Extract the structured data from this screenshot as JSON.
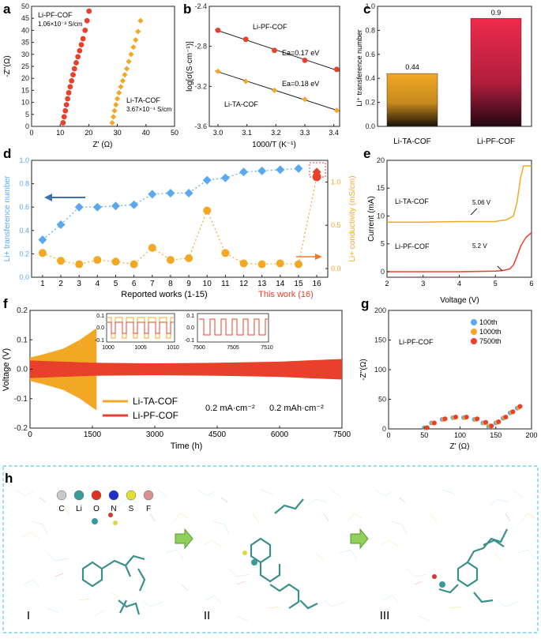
{
  "colors": {
    "red": "#e8402a",
    "orange": "#f2a825",
    "blue": "#5aa9ee",
    "dblue": "#3f6fb0",
    "gray": "#555555"
  },
  "panels": {
    "a": {
      "label": "a",
      "xlabel": "Z' (Ω)",
      "ylabel": "-Z''(Ω)",
      "xlim": [
        0,
        50
      ],
      "ylim": [
        0,
        50
      ],
      "xticks": [
        "0",
        "10",
        "20",
        "30",
        "40",
        "50"
      ],
      "yticks": [
        "0",
        "5",
        "10",
        "15",
        "20",
        "25",
        "30",
        "35",
        "40",
        "45",
        "50"
      ],
      "label_pf": "Li-PF-COF",
      "cond_pf": "1.06×10⁻³ S/cm",
      "label_ta": "Li-TA-COF",
      "cond_ta": "3.67×10⁻⁴ S/cm"
    },
    "b": {
      "label": "b",
      "xlabel": "1000/T (K⁻¹)",
      "ylabel": "log[σ(S·cm⁻¹)]",
      "xticks": [
        "3.0",
        "3.1",
        "3.2",
        "3.3",
        "3.4"
      ],
      "yticks": [
        "-2.4",
        "-2.8",
        "-3.2",
        "-3.6"
      ],
      "label_pf": "Li-PF-COF",
      "ea_pf": "Ea=0.17 eV",
      "label_ta": "Li-TA-COF",
      "ea_ta": "Ea=0.18 eV"
    },
    "c": {
      "label": "c",
      "ylabel": "Li⁺ transference number",
      "yticks": [
        "0.0",
        "0.2",
        "0.4",
        "0.6",
        "0.8",
        "1.0"
      ],
      "val_ta": "0.44",
      "val_pf": "0.9",
      "cat_ta": "Li-TA-COF",
      "cat_pf": "Li-PF-COF"
    },
    "d": {
      "label": "d",
      "xlabel": "Reported works (1-15)",
      "this_work": "This work (16)",
      "ylabel_left": "Li+ transference number",
      "ylabel_right": "Li+ conductivity (mS/cm)",
      "xticks": [
        "1",
        "2",
        "3",
        "4",
        "5",
        "6",
        "7",
        "8",
        "9",
        "10",
        "11",
        "12",
        "13",
        "14",
        "15",
        "16"
      ],
      "ylticks": [
        "0.0",
        "0.2",
        "0.4",
        "0.6",
        "0.8",
        "1.0"
      ],
      "yrticks": [
        "0.0",
        "0.5",
        "1.0"
      ]
    },
    "e": {
      "label": "e",
      "xlabel": "Voltage (V)",
      "ylabel": "Current (mA)",
      "xticks": [
        "2",
        "3",
        "4",
        "5",
        "6"
      ],
      "yticks": [
        "0",
        "5",
        "10",
        "15",
        "20"
      ],
      "label_ta": "Li-TA-COF",
      "v_ta": "5.06 V",
      "label_pf": "Li-PF-COF",
      "v_pf": "5.2 V"
    },
    "f": {
      "label": "f",
      "xlabel": "Time (h)",
      "ylabel": "Voltage (V)",
      "xticks": [
        "0",
        "1500",
        "3000",
        "4500",
        "6000",
        "7500"
      ],
      "yticks": [
        "-0.2",
        "-0.1",
        "0.0",
        "0.1",
        "0.2"
      ],
      "inset1_x": [
        "1000",
        "1005",
        "1010"
      ],
      "inset2_x": [
        "7500",
        "7505",
        "7510"
      ],
      "inset_y": [
        "0.1",
        "0.0",
        "-0.1"
      ],
      "legend_ta": "Li-TA-COF",
      "legend_pf": "Li-PF-COF",
      "cond1": "0.2 mA·cm⁻²",
      "cond2": "0.2 mAh·cm⁻²"
    },
    "g": {
      "label": "g",
      "xlabel": "Z' (Ω)",
      "ylabel": "-Z''(Ω)",
      "title": "Li-PF-COF",
      "xticks": [
        "0",
        "50",
        "100",
        "150",
        "200"
      ],
      "yticks": [
        "0",
        "50",
        "100",
        "150",
        "200"
      ],
      "legend": [
        "100th",
        "1000th",
        "7500th"
      ]
    },
    "h": {
      "label": "h",
      "elements": [
        "C",
        "Li",
        "O",
        "N",
        "S",
        "F"
      ],
      "stages": [
        "I",
        "II",
        "III"
      ]
    }
  },
  "chart_data": [
    {
      "type": "scatter",
      "panel": "a",
      "title": "",
      "xlabel": "Z' (Ω)",
      "ylabel": "-Z''(Ω)",
      "xlim": [
        0,
        50
      ],
      "ylim": [
        0,
        50
      ],
      "series": [
        {
          "name": "Li-PF-COF",
          "x": [
            11.0,
            11.4,
            11.8,
            12.2,
            12.6,
            13.0,
            13.5,
            14.0,
            14.5,
            15.0,
            15.6,
            16.2,
            16.8,
            17.4,
            18.0,
            18.7,
            19.4,
            20.1
          ],
          "y": [
            1.5,
            4,
            6.5,
            9,
            11.5,
            14,
            16.5,
            19,
            21.5,
            24,
            26.5,
            29,
            31.5,
            34,
            36.5,
            40,
            44,
            48
          ]
        },
        {
          "name": "Li-TA-COF",
          "x": [
            28.2,
            28.6,
            29.0,
            29.5,
            30.0,
            30.6,
            31.2,
            31.9,
            32.6,
            33.3,
            34.0,
            34.8,
            35.6,
            36.4,
            37.2,
            38.1
          ],
          "y": [
            1.5,
            4,
            6.5,
            9,
            11.5,
            14,
            16.5,
            19,
            21.5,
            24,
            27,
            30,
            33,
            36,
            39.5,
            44
          ]
        }
      ]
    },
    {
      "type": "scatter",
      "panel": "b",
      "title": "",
      "xlabel": "1000/T (K⁻¹)",
      "ylabel": "log[σ(S·cm⁻¹)]",
      "xlim": [
        2.97,
        3.42
      ],
      "ylim": [
        -3.6,
        -2.4
      ],
      "series": [
        {
          "name": "Li-PF-COF",
          "x": [
            3.0,
            3.096,
            3.195,
            3.3,
            3.41
          ],
          "y": [
            -2.64,
            -2.73,
            -2.84,
            -2.94,
            -3.03
          ]
        },
        {
          "name": "Li-TA-COF",
          "x": [
            3.0,
            3.096,
            3.195,
            3.3,
            3.41
          ],
          "y": [
            -3.05,
            -3.15,
            -3.24,
            -3.33,
            -3.44
          ]
        }
      ]
    },
    {
      "type": "bar",
      "panel": "c",
      "categories": [
        "Li-TA-COF",
        "Li-PF-COF"
      ],
      "values": [
        0.44,
        0.9
      ],
      "ylabel": "Li⁺ transference number",
      "ylim": [
        0,
        1.0
      ]
    },
    {
      "type": "line",
      "panel": "d",
      "x": [
        1,
        2,
        3,
        4,
        5,
        6,
        7,
        8,
        9,
        10,
        11,
        12,
        13,
        14,
        15,
        16
      ],
      "xlabel": "Reported works (1-15)",
      "series": [
        {
          "name": "Li+ transference number",
          "axis": "left",
          "values": [
            0.32,
            0.45,
            0.6,
            0.6,
            0.61,
            0.62,
            0.71,
            0.72,
            0.72,
            0.83,
            0.85,
            0.9,
            0.91,
            0.92,
            0.93,
            0.9
          ]
        },
        {
          "name": "Li+ conductivity (mS/cm)",
          "axis": "right",
          "values": [
            0.18,
            0.09,
            0.05,
            0.1,
            0.08,
            0.05,
            0.24,
            0.1,
            0.12,
            0.67,
            0.18,
            0.06,
            0.05,
            0.06,
            0.05,
            1.06
          ]
        }
      ],
      "ylim_left": [
        0,
        1.0
      ],
      "ylim_right": [
        -0.1,
        1.25
      ]
    },
    {
      "type": "line",
      "panel": "e",
      "xlabel": "Voltage (V)",
      "ylabel": "Current (mA)",
      "xlim": [
        2,
        6
      ],
      "ylim": [
        -1,
        20
      ],
      "series": [
        {
          "name": "Li-TA-COF",
          "x": [
            2,
            3,
            4,
            5,
            5.06,
            5.3,
            5.5,
            5.6,
            5.7,
            5.78,
            6
          ],
          "y": [
            8.9,
            8.9,
            9.0,
            9.0,
            9.1,
            9.3,
            10,
            12.5,
            17,
            19,
            19
          ]
        },
        {
          "name": "Li-PF-COF",
          "x": [
            2,
            3,
            4,
            5,
            5.2,
            5.4,
            5.5,
            5.6,
            5.7,
            5.85,
            6
          ],
          "y": [
            0,
            0,
            0,
            0.1,
            0.2,
            0.5,
            1.2,
            2.8,
            4.6,
            6.2,
            7
          ]
        }
      ]
    },
    {
      "type": "area",
      "panel": "f",
      "xlabel": "Time (h)",
      "ylabel": "Voltage (V)",
      "xlim": [
        0,
        7500
      ],
      "ylim": [
        -0.2,
        0.2
      ],
      "series": [
        {
          "name": "Li-TA-COF",
          "x": [
            0,
            300,
            800,
            1200,
            1600
          ],
          "upper": [
            0.04,
            0.05,
            0.07,
            0.1,
            0.14
          ],
          "lower": [
            -0.04,
            -0.05,
            -0.07,
            -0.1,
            -0.14
          ]
        },
        {
          "name": "Li-PF-COF",
          "x": [
            0,
            1500,
            3000,
            4500,
            6000,
            7500
          ],
          "upper": [
            0.03,
            0.022,
            0.02,
            0.022,
            0.026,
            0.035
          ],
          "lower": [
            -0.03,
            -0.022,
            -0.02,
            -0.022,
            -0.026,
            -0.035
          ]
        }
      ]
    },
    {
      "type": "scatter",
      "panel": "g",
      "title": "Li-PF-COF",
      "xlabel": "Z' (Ω)",
      "ylabel": "-Z''(Ω)",
      "xlim": [
        0,
        200
      ],
      "ylim": [
        0,
        200
      ],
      "series": [
        {
          "name": "100th",
          "color": "#5aa9ee",
          "x": [
            50,
            60,
            75,
            90,
            105,
            120,
            132,
            140,
            150,
            160,
            170,
            180
          ],
          "y": [
            2,
            10,
            16,
            19,
            19,
            16,
            10,
            4,
            10,
            18,
            27,
            35
          ]
        },
        {
          "name": "1000th",
          "color": "#f2a825",
          "x": [
            52,
            62,
            77,
            92,
            107,
            122,
            134,
            142,
            152,
            162,
            172,
            182
          ],
          "y": [
            2,
            10,
            16,
            19,
            19,
            16,
            10,
            5,
            11,
            19,
            28,
            36
          ]
        },
        {
          "name": "7500th",
          "color": "#e8402a",
          "x": [
            54,
            64,
            79,
            94,
            109,
            124,
            136,
            144,
            154,
            164,
            174,
            184
          ],
          "y": [
            2,
            10,
            17,
            20,
            20,
            17,
            11,
            5,
            12,
            20,
            29,
            38
          ]
        }
      ]
    }
  ]
}
